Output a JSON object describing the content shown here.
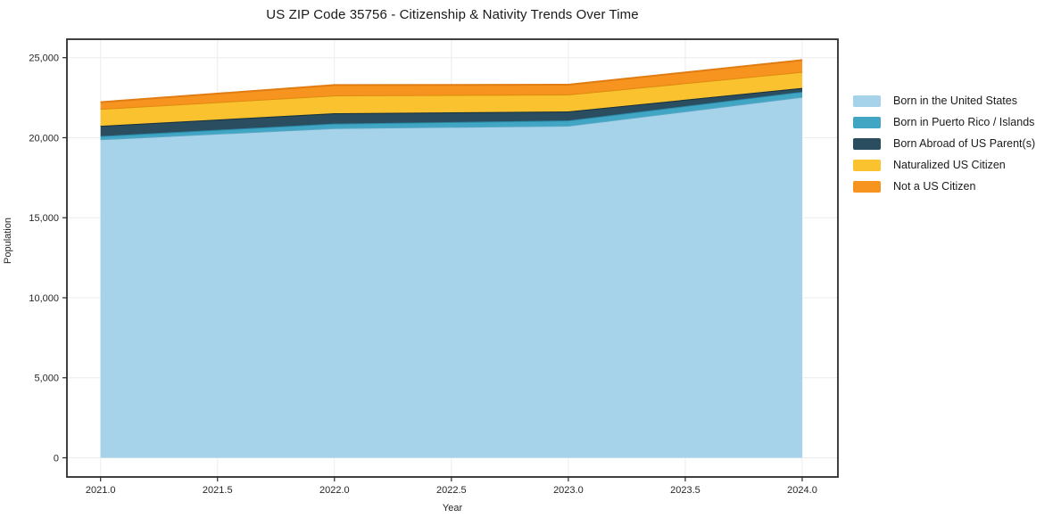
{
  "title": "US ZIP Code 35756 - Citizenship & Nativity Trends Over Time",
  "chart_data": {
    "type": "area",
    "stacked": true,
    "title": "US ZIP Code 35756 - Citizenship & Nativity Trends Over Time",
    "xlabel": "Year",
    "ylabel": "Population",
    "x": [
      2021,
      2022,
      2023,
      2024
    ],
    "xtick_values": [
      2021.0,
      2021.5,
      2022.0,
      2022.5,
      2023.0,
      2023.5,
      2024.0
    ],
    "xtick_labels": [
      "2021.0",
      "2021.5",
      "2022.0",
      "2022.5",
      "2023.0",
      "2023.5",
      "2024.0"
    ],
    "ytick_values": [
      0,
      5000,
      10000,
      15000,
      20000,
      25000
    ],
    "ytick_labels": [
      "0",
      "5,000",
      "10,000",
      "15,000",
      "20,000",
      "25,000"
    ],
    "ylim": [
      0,
      26000
    ],
    "grid": true,
    "legend_position": "right",
    "series": [
      {
        "name": "Born in the United States",
        "color": "#a6d3e9",
        "edge": "#5aa7c6",
        "values": [
          19900,
          20600,
          20750,
          22550
        ]
      },
      {
        "name": "Born in Puerto Rico / Islands",
        "color": "#41a6c4",
        "edge": "#2a8aa8",
        "values": [
          200,
          280,
          330,
          320
        ]
      },
      {
        "name": "Born Abroad of US Parent(s)",
        "color": "#2a4d60",
        "edge": "#16303e",
        "values": [
          640,
          650,
          560,
          240
        ]
      },
      {
        "name": "Naturalized US Citizen",
        "color": "#f9c22e",
        "edge": "#de8a10",
        "values": [
          1060,
          1110,
          1060,
          1000
        ]
      },
      {
        "name": "Not a US Citizen",
        "color": "#f7941f",
        "edge": "#e07c12",
        "values": [
          420,
          650,
          610,
          740
        ]
      }
    ],
    "totals": [
      22220,
      23290,
      23310,
      24850
    ]
  },
  "style": {
    "grid_color": "#ececec",
    "spine_color": "#2b2b2b",
    "tick_text_color": "#262626",
    "plot_bg": "#ffffff"
  }
}
